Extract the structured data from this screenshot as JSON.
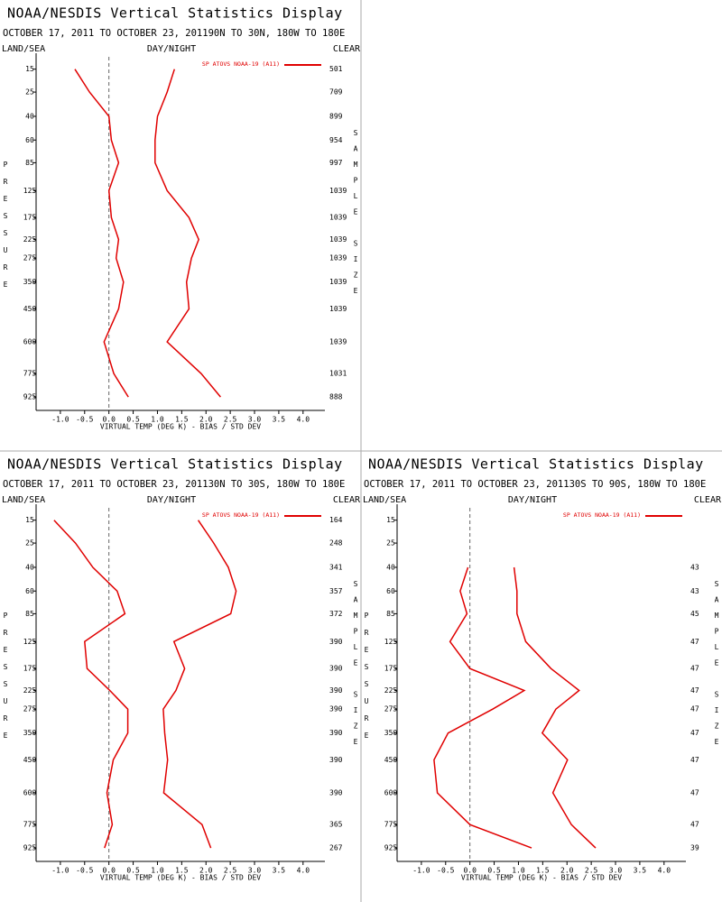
{
  "chart_data": [
    {
      "type": "profile",
      "title": "NOAA/NESDIS Vertical Statistics Display",
      "subtitle": "OCTOBER 17, 2011 TO OCTOBER 23, 201190N TO 30N, 180W TO 180E",
      "left_header": "LAND/SEA",
      "center_header": "DAY/NIGHT",
      "right_header": "CLEAR",
      "ylabel": "PRESSURE",
      "y2label": "SAMPLE SIZE",
      "xlabel": "VIRTUAL TEMP (DEG K) - BIAS / STD DEV",
      "categories": [
        15,
        25,
        40,
        60,
        85,
        125,
        175,
        225,
        275,
        350,
        450,
        600,
        775,
        925
      ],
      "ylim": [
        10,
        1020
      ],
      "xlim": [
        -1.5,
        4.45
      ],
      "xticks": [
        {
          "value": -1,
          "label": "-1.0"
        },
        {
          "value": -0.5,
          "label": "-0.5"
        },
        {
          "value": 0,
          "label": "0.0"
        },
        {
          "value": 0.5,
          "label": "0.5"
        },
        {
          "value": 1,
          "label": "1.0"
        },
        {
          "value": 1.5,
          "label": "1.5"
        },
        {
          "value": 2,
          "label": "2.0"
        },
        {
          "value": 2.5,
          "label": "2.5"
        },
        {
          "value": 3,
          "label": "3.0"
        },
        {
          "value": 3.5,
          "label": "3.5"
        },
        {
          "value": 4,
          "label": "4.0"
        }
      ],
      "series": [
        {
          "name": "SP ATOVS NOAA-19 (A11)",
          "color": "#e00000",
          "values": [
            -0.7,
            -0.4,
            0,
            0.05,
            0.2,
            0,
            0.05,
            0.2,
            0.15,
            0.3,
            0.2,
            -0.1,
            0.1,
            0.4
          ],
          "std_dev": [
            1.35,
            1.2,
            1.0,
            0.95,
            0.95,
            1.2,
            1.65,
            1.85,
            1.7,
            1.6,
            1.65,
            1.2,
            1.9,
            2.3
          ]
        }
      ],
      "sample_size": [
        501,
        709,
        899,
        954,
        997,
        1039,
        1039,
        1039,
        1039,
        1039,
        1039,
        1039,
        1031,
        888
      ]
    },
    {
      "type": "profile",
      "title": "NOAA/NESDIS Vertical Statistics Display",
      "subtitle": "OCTOBER 17, 2011 TO OCTOBER 23, 201130N TO 30S, 180W TO 180E",
      "left_header": "LAND/SEA",
      "center_header": "DAY/NIGHT",
      "right_header": "CLEAR",
      "ylabel": "PRESSURE",
      "y2label": "SAMPLE SIZE",
      "xlabel": "VIRTUAL TEMP (DEG K) - BIAS / STD DEV",
      "categories": [
        15,
        25,
        40,
        60,
        85,
        125,
        175,
        225,
        275,
        350,
        450,
        600,
        775,
        925
      ],
      "ylim": [
        10,
        1020
      ],
      "xlim": [
        -1.5,
        4.45
      ],
      "xticks": [
        {
          "value": -1,
          "label": "-1.0"
        },
        {
          "value": -0.5,
          "label": "-0.5"
        },
        {
          "value": 0,
          "label": "0.0"
        },
        {
          "value": 0.5,
          "label": "0.5"
        },
        {
          "value": 1,
          "label": "1.0"
        },
        {
          "value": 1.5,
          "label": "1.5"
        },
        {
          "value": 2,
          "label": "2.0"
        },
        {
          "value": 2.5,
          "label": "2.5"
        },
        {
          "value": 3,
          "label": "3.0"
        },
        {
          "value": 3.5,
          "label": "3.5"
        },
        {
          "value": 4,
          "label": "4.0"
        }
      ],
      "series": [
        {
          "name": "SP ATOVS NOAA-19 (A11)",
          "color": "#e00000",
          "values": [
            -1.13,
            -0.69,
            -0.33,
            0.17,
            0.33,
            -0.5,
            -0.45,
            0.02,
            0.39,
            0.39,
            0.09,
            -0.04,
            0.07,
            -0.09
          ],
          "std_dev": [
            1.84,
            2.16,
            2.46,
            2.62,
            2.51,
            1.34,
            1.56,
            1.38,
            1.12,
            1.15,
            1.21,
            1.13,
            1.92,
            2.1
          ]
        }
      ],
      "sample_size": [
        164,
        248,
        341,
        357,
        372,
        390,
        390,
        390,
        390,
        390,
        390,
        390,
        365,
        267
      ]
    },
    {
      "type": "profile",
      "title": "NOAA/NESDIS Vertical Statistics Display",
      "subtitle": "OCTOBER 17, 2011 TO OCTOBER 23, 201130S TO 90S, 180W TO 180E",
      "left_header": "LAND/SEA",
      "center_header": "DAY/NIGHT",
      "right_header": "CLEAR",
      "ylabel": "PRESSURE",
      "y2label": "SAMPLE SIZE",
      "xlabel": "VIRTUAL TEMP (DEG K) - BIAS / STD DEV",
      "categories": [
        15,
        25,
        40,
        60,
        85,
        125,
        175,
        225,
        275,
        350,
        450,
        600,
        775,
        925
      ],
      "ylim": [
        10,
        1020
      ],
      "xlim": [
        -1.5,
        4.45
      ],
      "xticks": [
        {
          "value": -1,
          "label": "-1.0"
        },
        {
          "value": -0.5,
          "label": "-0.5"
        },
        {
          "value": 0,
          "label": "0.0"
        },
        {
          "value": 0.5,
          "label": "0.5"
        },
        {
          "value": 1,
          "label": "1.0"
        },
        {
          "value": 1.5,
          "label": "1.5"
        },
        {
          "value": 2,
          "label": "2.0"
        },
        {
          "value": 2.5,
          "label": "2.5"
        },
        {
          "value": 3,
          "label": "3.0"
        },
        {
          "value": 3.5,
          "label": "3.5"
        },
        {
          "value": 4,
          "label": "4.0"
        }
      ],
      "series": [
        {
          "name": "SP ATOVS NOAA-19 (A11)",
          "color": "#e00000",
          "values": [
            null,
            null,
            -0.04,
            -0.2,
            -0.06,
            -0.41,
            0,
            1.12,
            0.47,
            -0.45,
            -0.74,
            -0.67,
            0,
            1.27
          ],
          "std_dev": [
            null,
            null,
            0.91,
            0.97,
            0.97,
            1.15,
            1.67,
            2.25,
            1.77,
            1.49,
            2.01,
            1.71,
            2.09,
            2.59
          ]
        }
      ],
      "sample_size": [
        null,
        null,
        43,
        43,
        45,
        47,
        47,
        47,
        47,
        47,
        47,
        47,
        47,
        39
      ]
    }
  ]
}
